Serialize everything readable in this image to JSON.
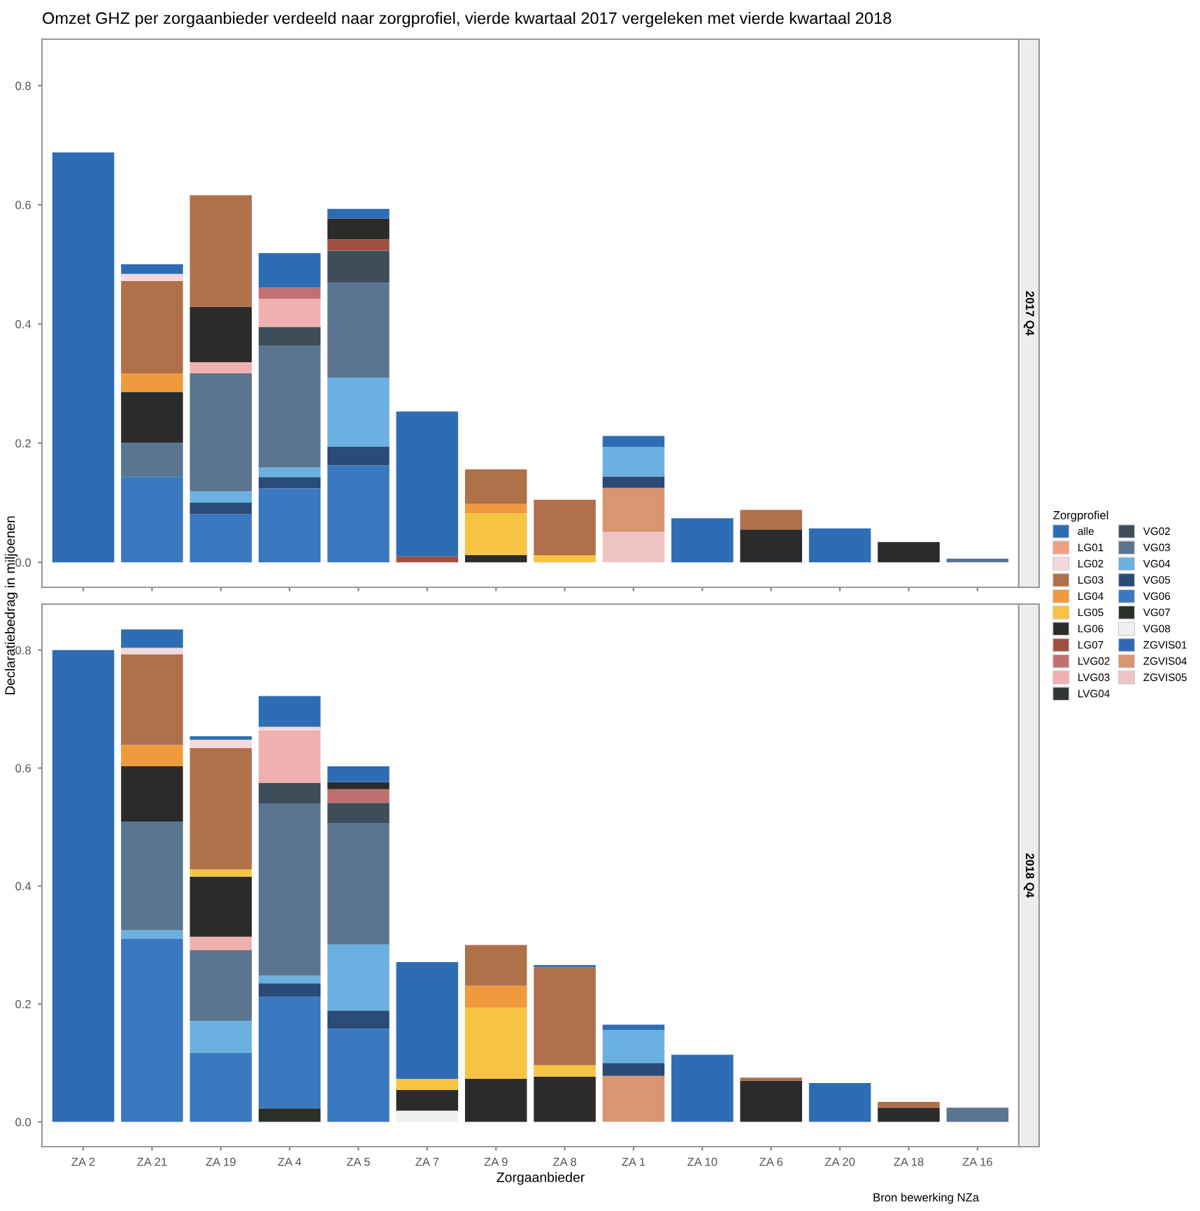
{
  "chart_data": [
    {
      "type": "bar",
      "stacked": true,
      "title": "Omzet GHZ per zorgaanbieder verdeeld naar zorgprofiel, vierde kwartaal 2017 vergeleken met vierde kwartaal 2018",
      "subtitle": "2017 Q4",
      "ylabel": "Declaratiebedrag in miljoenen",
      "tick_labels": "y",
      "grid": false,
      "legend": "right",
      "legend_title": "Zorgprofiel",
      "categories": [
        null,
        null,
        null,
        null,
        null,
        null,
        null,
        null,
        null,
        null,
        null,
        null,
        null,
        null
      ],
      "ylim": [
        -0.042,
        0.878
      ],
      "yticks": [
        {
          "value": 0,
          "label": "0.0"
        },
        0.2,
        0.4,
        0.6,
        0.8
      ],
      "series": [
        {
          "name": "ZGVIS05",
          "color": "#f0c4c4",
          "values": [
            null,
            null,
            null,
            null,
            null,
            null,
            null,
            null,
            0.051,
            null,
            null,
            null,
            null,
            null
          ]
        },
        {
          "name": "ZGVIS04",
          "color": "#d99470",
          "values": [
            null,
            null,
            null,
            null,
            null,
            null,
            null,
            null,
            0.074,
            null,
            null,
            null,
            null,
            null
          ]
        },
        {
          "name": "ZGVIS01",
          "color": "#2e6ab4",
          "values": [
            null,
            null,
            null,
            null,
            null,
            null,
            null,
            null,
            null,
            null,
            null,
            null,
            null,
            null
          ]
        },
        {
          "name": "VG08",
          "color": "#f0f0f0",
          "values": [
            null,
            null,
            null,
            null,
            null,
            null,
            null,
            null,
            null,
            null,
            null,
            null,
            null,
            null
          ]
        },
        {
          "name": "VG07",
          "color": "#2a2f2a",
          "values": [
            null,
            null,
            null,
            null,
            null,
            null,
            null,
            null,
            null,
            null,
            null,
            null,
            null,
            null
          ]
        },
        {
          "name": "VG06",
          "color": "#3a78c0",
          "values": [
            null,
            0.143,
            0.081,
            0.124,
            0.163,
            null,
            null,
            null,
            null,
            null,
            null,
            null,
            null,
            null
          ]
        },
        {
          "name": "VG05",
          "color": "#2a4a78",
          "values": [
            null,
            null,
            0.019,
            0.019,
            0.031,
            null,
            null,
            null,
            0.019,
            null,
            null,
            null,
            null,
            null
          ]
        },
        {
          "name": "VG04",
          "color": "#6ab0e0",
          "values": [
            null,
            null,
            0.019,
            0.016,
            0.116,
            null,
            null,
            null,
            0.05,
            null,
            null,
            null,
            null,
            null
          ]
        },
        {
          "name": "VG03",
          "color": "#5a7590",
          "values": [
            null,
            0.058,
            0.198,
            0.205,
            0.159,
            null,
            null,
            null,
            null,
            null,
            null,
            null,
            null,
            0.006
          ]
        },
        {
          "name": "VG02",
          "color": "#3d4e5a",
          "values": [
            null,
            null,
            null,
            0.031,
            0.054,
            null,
            null,
            null,
            null,
            null,
            null,
            null,
            null,
            null
          ]
        },
        {
          "name": "LVG04",
          "color": "#303535",
          "values": [
            null,
            null,
            null,
            null,
            null,
            null,
            null,
            null,
            null,
            null,
            null,
            null,
            null,
            null
          ]
        },
        {
          "name": "LVG03",
          "color": "#f0b0b0",
          "values": [
            null,
            null,
            0.019,
            0.047,
            null,
            null,
            null,
            null,
            null,
            null,
            null,
            null,
            null,
            null
          ]
        },
        {
          "name": "LVG02",
          "color": "#c07070",
          "values": [
            null,
            null,
            null,
            0.019,
            null,
            null,
            null,
            null,
            null,
            null,
            null,
            null,
            null,
            null
          ]
        },
        {
          "name": "LG07",
          "color": "#a05040",
          "values": [
            null,
            null,
            null,
            null,
            0.019,
            0.01,
            null,
            null,
            null,
            null,
            null,
            null,
            null,
            null
          ]
        },
        {
          "name": "LG06",
          "color": "#2b2b2b",
          "values": [
            null,
            0.085,
            0.093,
            null,
            0.035,
            null,
            0.012,
            null,
            null,
            null,
            0.055,
            null,
            0.034,
            null
          ]
        },
        {
          "name": "LG05",
          "color": "#f6c343",
          "values": [
            null,
            null,
            null,
            null,
            null,
            null,
            0.07,
            0.012,
            null,
            null,
            null,
            null,
            null,
            null
          ]
        },
        {
          "name": "LG04",
          "color": "#f09a3e",
          "values": [
            null,
            0.031,
            null,
            null,
            null,
            null,
            0.016,
            null,
            null,
            null,
            null,
            null,
            null,
            null
          ]
        },
        {
          "name": "LG03",
          "color": "#b0704a",
          "values": [
            null,
            0.155,
            0.187,
            null,
            null,
            null,
            0.058,
            0.093,
            null,
            null,
            0.033,
            null,
            null,
            null
          ]
        },
        {
          "name": "LG02",
          "color": "#f3d9dc",
          "values": [
            null,
            0.012,
            null,
            null,
            null,
            null,
            null,
            null,
            null,
            null,
            null,
            null,
            null,
            null
          ]
        },
        {
          "name": "LG01",
          "color": "#f0a080",
          "values": [
            null,
            null,
            null,
            null,
            null,
            null,
            null,
            null,
            null,
            null,
            null,
            null,
            null,
            null
          ]
        },
        {
          "name": "alle",
          "color": "#2e6db4",
          "values": [
            0.688,
            0.016,
            null,
            0.058,
            0.016,
            0.243,
            null,
            null,
            0.018,
            0.074,
            null,
            0.057,
            null,
            null
          ]
        }
      ]
    },
    {
      "type": "bar",
      "stacked": true,
      "subtitle": "2018 Q4",
      "xlabel": "Zorgaanbieder",
      "grid": false,
      "annotations": [
        "Bron bewerking NZa"
      ],
      "categories": [
        "ZA 2",
        "ZA 21",
        "ZA 19",
        "ZA 4",
        "ZA 5",
        "ZA 7",
        "ZA 9",
        "ZA 8",
        "ZA 1",
        "ZA 10",
        "ZA 6",
        "ZA 20",
        "ZA 18",
        "ZA 16"
      ],
      "ylim": [
        -0.042,
        0.878
      ],
      "yticks": [
        {
          "value": 0,
          "label": "0.0"
        },
        0.2,
        0.4,
        0.6,
        0.8
      ],
      "series": [
        {
          "color": "#d99470",
          "values": [
            null,
            null,
            null,
            null,
            null,
            null,
            null,
            null,
            0.078,
            null,
            null,
            null,
            null,
            null
          ]
        },
        {
          "color": "#f0f0f0",
          "values": [
            null,
            null,
            null,
            null,
            null,
            0.019,
            null,
            null,
            null,
            null,
            null,
            null,
            null,
            null
          ]
        },
        {
          "color": "#2a2f2a",
          "values": [
            null,
            null,
            null,
            0.023,
            null,
            null,
            null,
            null,
            null,
            null,
            null,
            null,
            null,
            null
          ]
        },
        {
          "color": "#3a78c0",
          "values": [
            null,
            0.31,
            0.117,
            0.189,
            0.158,
            null,
            null,
            null,
            null,
            null,
            null,
            null,
            null,
            null
          ]
        },
        {
          "color": "#2a4a78",
          "values": [
            null,
            null,
            null,
            0.023,
            0.031,
            null,
            null,
            null,
            0.022,
            null,
            null,
            null,
            null,
            null
          ]
        },
        {
          "color": "#6ab0e0",
          "values": [
            null,
            0.015,
            0.054,
            0.013,
            0.112,
            null,
            null,
            null,
            0.056,
            null,
            null,
            null,
            null,
            null
          ]
        },
        {
          "color": "#5a7590",
          "values": [
            null,
            0.184,
            0.12,
            0.292,
            0.205,
            null,
            null,
            null,
            null,
            null,
            null,
            null,
            null,
            0.024
          ]
        },
        {
          "color": "#3d4e5a",
          "values": [
            null,
            null,
            null,
            0.035,
            0.035,
            null,
            null,
            null,
            null,
            null,
            null,
            null,
            null,
            null
          ]
        },
        {
          "color": "#f0b0b0",
          "values": [
            null,
            null,
            0.023,
            0.089,
            null,
            null,
            null,
            null,
            null,
            null,
            null,
            null,
            null,
            null
          ]
        },
        {
          "color": "#c07070",
          "values": [
            null,
            null,
            null,
            null,
            0.023,
            null,
            null,
            null,
            null,
            null,
            null,
            null,
            null,
            null
          ]
        },
        {
          "color": "#2b2b2b",
          "values": [
            null,
            0.094,
            0.102,
            null,
            0.012,
            0.035,
            0.073,
            0.077,
            null,
            null,
            0.07,
            null,
            0.024,
            null
          ]
        },
        {
          "color": "#f6c343",
          "values": [
            null,
            null,
            0.012,
            null,
            null,
            0.019,
            0.121,
            0.019,
            null,
            null,
            null,
            null,
            null,
            null
          ]
        },
        {
          "color": "#f09a3e",
          "values": [
            null,
            0.036,
            null,
            null,
            null,
            null,
            0.037,
            null,
            null,
            null,
            null,
            null,
            null,
            null
          ]
        },
        {
          "color": "#b0704a",
          "values": [
            null,
            0.154,
            0.206,
            null,
            null,
            null,
            0.069,
            0.166,
            null,
            null,
            0.005,
            null,
            0.01,
            null
          ]
        },
        {
          "color": "#f3d9dc",
          "values": [
            null,
            0.011,
            0.014,
            0.006,
            null,
            null,
            null,
            null,
            null,
            null,
            null,
            null,
            null,
            null
          ]
        },
        {
          "color": "#2e6db4",
          "values": [
            0.8,
            0.031,
            0.006,
            0.052,
            0.027,
            0.198,
            null,
            0.004,
            0.009,
            0.114,
            null,
            0.066,
            null,
            null
          ]
        }
      ]
    }
  ]
}
